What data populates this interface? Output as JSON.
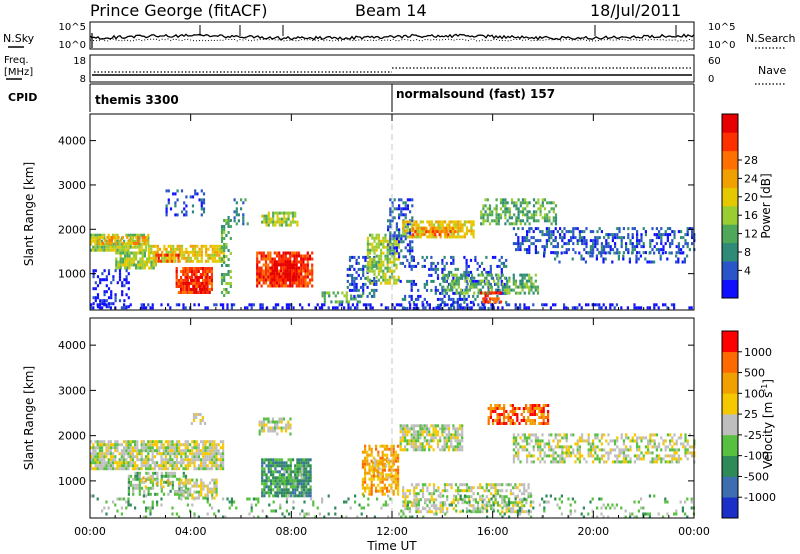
{
  "header": {
    "station": "Prince George (fitACF)",
    "beam": "Beam 14",
    "date": "18/Jul/2011"
  },
  "noise_panel": {
    "left_label": "N.Sky",
    "right_label": "N.Search",
    "left_ticks": [
      "10^5",
      "10^0"
    ],
    "right_ticks": [
      "10^5",
      "10^0"
    ]
  },
  "freq_panel": {
    "left_label_1": "Freq.",
    "left_label_2": "[MHz]",
    "right_label": "Nave",
    "left_ticks": [
      "18",
      "8"
    ],
    "right_ticks": [
      "60",
      "0"
    ]
  },
  "cpid_panel": {
    "label": "CPID",
    "modes": [
      {
        "name": "themis 3300",
        "start_hour": 0
      },
      {
        "name": "normalsound (fast) 157",
        "start_hour": 12
      }
    ]
  },
  "chart_data": [
    {
      "type": "heatmap",
      "quantity": "Power",
      "ylabel": "Slant Range [km]",
      "xlabel": "Time UT",
      "x_ticks": [
        "00:00",
        "04:00",
        "08:00",
        "12:00",
        "16:00",
        "20:00",
        "00:00"
      ],
      "y_ticks": [
        1000,
        2000,
        3000,
        4000
      ],
      "xlim_hours": [
        0,
        24
      ],
      "ylim_km": [
        180,
        4600
      ],
      "colorbar": {
        "label": "Power [dB]",
        "tick_labels": [
          "4",
          "8",
          "12",
          "16",
          "20",
          "24",
          "28"
        ],
        "colors": [
          "#1010ff",
          "#2a55c8",
          "#2f8a78",
          "#4fa85a",
          "#9acd32",
          "#e6c800",
          "#f0a000",
          "#ff7000",
          "#ff3000",
          "#e60000"
        ]
      },
      "echo_regions": [
        {
          "t": [
            0.0,
            2.3
          ],
          "r": [
            1550,
            1900
          ],
          "level": 4,
          "density": 0.85
        },
        {
          "t": [
            0.3,
            2.3
          ],
          "r": [
            1650,
            1850
          ],
          "level": 6,
          "density": 0.6
        },
        {
          "t": [
            1.0,
            2.6
          ],
          "r": [
            1100,
            1500
          ],
          "level": 4,
          "density": 0.75
        },
        {
          "t": [
            2.3,
            5.3
          ],
          "r": [
            1250,
            1650
          ],
          "level": 5,
          "density": 0.75
        },
        {
          "t": [
            2.6,
            3.5
          ],
          "r": [
            1300,
            1450
          ],
          "level": 8,
          "density": 0.55
        },
        {
          "t": [
            3.4,
            4.8
          ],
          "r": [
            550,
            1150
          ],
          "level": 8,
          "density": 0.8
        },
        {
          "t": [
            3.8,
            4.6
          ],
          "r": [
            650,
            950
          ],
          "level": 9,
          "density": 0.7
        },
        {
          "t": [
            0.1,
            1.5
          ],
          "r": [
            250,
            1100
          ],
          "level": 0,
          "density": 0.35
        },
        {
          "t": [
            5.2,
            5.6
          ],
          "r": [
            500,
            2300
          ],
          "level": 3,
          "density": 0.45
        },
        {
          "t": [
            5.7,
            6.3
          ],
          "r": [
            2100,
            2700
          ],
          "level": 2,
          "density": 0.4
        },
        {
          "t": [
            6.6,
            8.8
          ],
          "r": [
            700,
            1500
          ],
          "level": 8,
          "density": 0.85
        },
        {
          "t": [
            7.2,
            8.2
          ],
          "r": [
            850,
            1300
          ],
          "level": 9,
          "density": 0.7
        },
        {
          "t": [
            6.8,
            8.2
          ],
          "r": [
            2100,
            2400
          ],
          "level": 4,
          "density": 0.65
        },
        {
          "t": [
            3.0,
            4.5
          ],
          "r": [
            2300,
            2900
          ],
          "level": 1,
          "density": 0.2
        },
        {
          "t": [
            9.2,
            10.8
          ],
          "r": [
            350,
            600
          ],
          "level": 3,
          "density": 0.5
        },
        {
          "t": [
            10.2,
            11.4
          ],
          "r": [
            500,
            1400
          ],
          "level": 1,
          "density": 0.4
        },
        {
          "t": [
            11.0,
            12.3
          ],
          "r": [
            800,
            1900
          ],
          "level": 4,
          "density": 0.65
        },
        {
          "t": [
            11.8,
            12.8
          ],
          "r": [
            1400,
            2700
          ],
          "level": 1,
          "density": 0.45
        },
        {
          "t": [
            12.4,
            15.2
          ],
          "r": [
            1800,
            2200
          ],
          "level": 5,
          "density": 0.75
        },
        {
          "t": [
            12.8,
            14.6
          ],
          "r": [
            1850,
            2050
          ],
          "level": 7,
          "density": 0.5
        },
        {
          "t": [
            12.3,
            16.5
          ],
          "r": [
            200,
            1400
          ],
          "level": 1,
          "density": 0.28
        },
        {
          "t": [
            14.0,
            17.8
          ],
          "r": [
            550,
            1000
          ],
          "level": 3,
          "density": 0.5
        },
        {
          "t": [
            15.5,
            16.3
          ],
          "r": [
            350,
            600
          ],
          "level": 8,
          "density": 0.45
        },
        {
          "t": [
            15.5,
            18.5
          ],
          "r": [
            2100,
            2700
          ],
          "level": 3,
          "density": 0.5
        },
        {
          "t": [
            16.8,
            24.0
          ],
          "r": [
            1500,
            2050
          ],
          "level": 1,
          "density": 0.45
        },
        {
          "t": [
            18.0,
            24.0
          ],
          "r": [
            1250,
            1500
          ],
          "level": 1,
          "density": 0.25
        },
        {
          "t": [
            0.0,
            24.0
          ],
          "r": [
            200,
            330
          ],
          "level": 0,
          "density": 0.4
        }
      ]
    },
    {
      "type": "heatmap",
      "quantity": "Velocity",
      "ylabel": "Slant Range [km]",
      "xlabel": "Time UT",
      "x_ticks": [
        "00:00",
        "04:00",
        "08:00",
        "12:00",
        "16:00",
        "20:00",
        "00:00"
      ],
      "y_ticks": [
        1000,
        2000,
        3000,
        4000
      ],
      "xlim_hours": [
        0,
        24
      ],
      "ylim_km": [
        180,
        4600
      ],
      "colorbar": {
        "label": "Velocity [m s",
        "label_sup": "-1",
        "label_end": "]",
        "tick_labels": [
          "1000",
          "500",
          "100",
          "25",
          "-25",
          "-100",
          "-500",
          "-1000"
        ],
        "colors": [
          "#1a2fc8",
          "#3d6fb0",
          "#2e8a58",
          "#58c040",
          "#bebebe",
          "#f5c800",
          "#f0a000",
          "#ff6a00",
          "#ff0000"
        ]
      },
      "echo_regions": [
        {
          "t": [
            0.0,
            5.3
          ],
          "r": [
            1300,
            1900
          ],
          "level": 4,
          "density": 0.8
        },
        {
          "t": [
            1.5,
            3.8
          ],
          "r": [
            700,
            1200
          ],
          "level": 3,
          "density": 0.55
        },
        {
          "t": [
            2.0,
            3.2
          ],
          "r": [
            850,
            1100
          ],
          "level": 5,
          "density": 0.35
        },
        {
          "t": [
            3.5,
            5.0
          ],
          "r": [
            600,
            1050
          ],
          "level": 4,
          "density": 0.6
        },
        {
          "t": [
            6.8,
            8.8
          ],
          "r": [
            700,
            1500
          ],
          "level": 2,
          "density": 0.85
        },
        {
          "t": [
            7.6,
            8.4
          ],
          "r": [
            850,
            1300
          ],
          "level": 3,
          "density": 0.45
        },
        {
          "t": [
            6.7,
            8.0
          ],
          "r": [
            2050,
            2400
          ],
          "level": 4,
          "density": 0.6
        },
        {
          "t": [
            4.0,
            4.6
          ],
          "r": [
            2300,
            2500
          ],
          "level": 4,
          "density": 0.5
        },
        {
          "t": [
            10.8,
            12.2
          ],
          "r": [
            700,
            1800
          ],
          "level": 6,
          "density": 0.6
        },
        {
          "t": [
            11.2,
            12.0
          ],
          "r": [
            1100,
            1500
          ],
          "level": 5,
          "density": 0.5
        },
        {
          "t": [
            12.3,
            14.8
          ],
          "r": [
            1700,
            2250
          ],
          "level": 4,
          "density": 0.75
        },
        {
          "t": [
            15.8,
            18.2
          ],
          "r": [
            2250,
            2700
          ],
          "level": 7,
          "density": 0.65
        },
        {
          "t": [
            16.8,
            24.0
          ],
          "r": [
            1450,
            2050
          ],
          "level": 4,
          "density": 0.55
        },
        {
          "t": [
            12.4,
            17.5
          ],
          "r": [
            300,
            950
          ],
          "level": 4,
          "density": 0.5
        },
        {
          "t": [
            0.0,
            24.0
          ],
          "r": [
            200,
            700
          ],
          "level": 3,
          "density": 0.14
        }
      ]
    }
  ]
}
